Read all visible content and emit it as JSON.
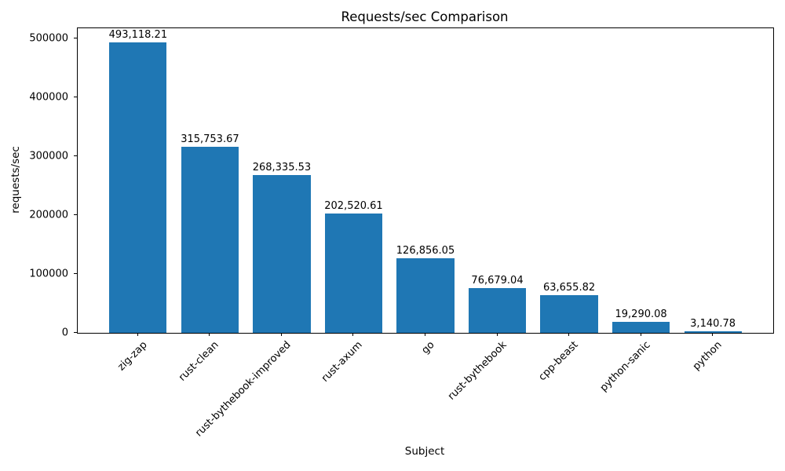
{
  "chart_data": {
    "type": "bar",
    "title": "Requests/sec Comparison",
    "xlabel": "Subject",
    "ylabel": "requests/sec",
    "categories": [
      "zig-zap",
      "rust-clean",
      "rust-bythebook-improved",
      "rust-axum",
      "go",
      "rust-bythebook",
      "cpp-beast",
      "python-sanic",
      "python"
    ],
    "values": [
      493118.21,
      315753.67,
      268335.53,
      202520.61,
      126856.05,
      76679.04,
      63655.82,
      19290.08,
      3140.78
    ],
    "value_labels": [
      "493,118.21",
      "315,753.67",
      "268,335.53",
      "202,520.61",
      "126,856.05",
      "76,679.04",
      "63,655.82",
      "19,290.08",
      "3,140.78"
    ],
    "yticks": [
      0,
      100000,
      200000,
      300000,
      400000,
      500000
    ],
    "ytick_labels": [
      "0",
      "100000",
      "200000",
      "300000",
      "400000",
      "500000"
    ],
    "ylim": [
      0,
      517774
    ],
    "xlim": [
      -0.84,
      8.84
    ],
    "bar_width_units": 0.8,
    "bar_color": "#1f77b4",
    "grid": false,
    "legend": null,
    "background_color": "#ffffff",
    "text_color": "#000000"
  }
}
